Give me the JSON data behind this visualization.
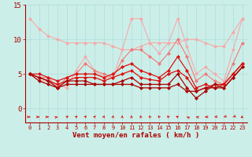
{
  "background_color": "#cceee8",
  "xlabel": "Vent moyen/en rafales ( km/h )",
  "x": [
    0,
    1,
    2,
    3,
    4,
    5,
    6,
    7,
    8,
    9,
    10,
    11,
    12,
    13,
    14,
    15,
    16,
    17,
    18,
    19,
    20,
    21,
    22,
    23
  ],
  "line1": [
    13.0,
    11.5,
    10.5,
    10.0,
    9.5,
    9.5,
    9.5,
    9.5,
    9.5,
    9.0,
    8.5,
    8.5,
    9.0,
    9.5,
    9.5,
    9.5,
    9.5,
    10.0,
    10.0,
    9.5,
    9.0,
    9.0,
    11.0,
    13.0
  ],
  "line2": [
    5.0,
    4.0,
    4.0,
    3.5,
    3.0,
    5.5,
    7.5,
    5.5,
    4.5,
    4.5,
    8.5,
    13.0,
    13.0,
    9.5,
    8.0,
    9.5,
    13.0,
    9.0,
    5.0,
    6.0,
    5.0,
    4.0,
    8.5,
    13.0
  ],
  "line3": [
    5.0,
    4.5,
    4.5,
    3.0,
    4.5,
    5.0,
    6.5,
    5.5,
    5.0,
    4.5,
    7.0,
    8.5,
    8.5,
    7.5,
    6.5,
    8.0,
    10.0,
    7.5,
    4.0,
    5.0,
    4.0,
    3.5,
    6.5,
    9.5
  ],
  "line4": [
    5.0,
    5.0,
    4.5,
    4.0,
    4.5,
    5.0,
    5.0,
    5.0,
    4.5,
    5.0,
    6.0,
    6.5,
    5.5,
    5.0,
    4.5,
    5.5,
    7.5,
    5.5,
    3.0,
    3.5,
    3.0,
    3.5,
    5.0,
    6.5
  ],
  "line5": [
    5.0,
    4.5,
    4.0,
    3.5,
    4.0,
    4.5,
    4.5,
    4.5,
    4.0,
    4.5,
    5.0,
    5.5,
    4.5,
    4.2,
    4.0,
    5.0,
    5.5,
    4.5,
    2.5,
    3.0,
    3.5,
    3.5,
    5.0,
    6.5
  ],
  "line6": [
    5.0,
    4.5,
    4.0,
    3.0,
    4.0,
    4.0,
    4.0,
    3.5,
    3.5,
    3.5,
    4.0,
    4.5,
    3.5,
    3.5,
    3.5,
    3.5,
    5.0,
    3.0,
    1.5,
    2.5,
    3.5,
    3.0,
    4.5,
    6.0
  ],
  "line7": [
    5.0,
    4.0,
    3.5,
    3.0,
    3.5,
    3.5,
    3.5,
    3.5,
    3.5,
    3.5,
    3.5,
    3.5,
    3.0,
    3.0,
    3.0,
    3.0,
    3.5,
    2.5,
    2.5,
    3.0,
    3.0,
    3.0,
    4.5,
    6.0
  ],
  "arrow_angles": [
    90,
    90,
    90,
    75,
    60,
    50,
    40,
    35,
    25,
    15,
    5,
    355,
    345,
    335,
    325,
    315,
    300,
    295,
    280,
    270,
    260,
    250,
    245,
    235
  ],
  "ylim": [
    -2.0,
    15
  ],
  "yticks": [
    0,
    5,
    10,
    15
  ],
  "color_light": "#f5aaaa",
  "color_mid": "#f07878",
  "color_dark": "#dd1111",
  "color_darkest": "#aa0000",
  "grid_color": "#aadddd"
}
